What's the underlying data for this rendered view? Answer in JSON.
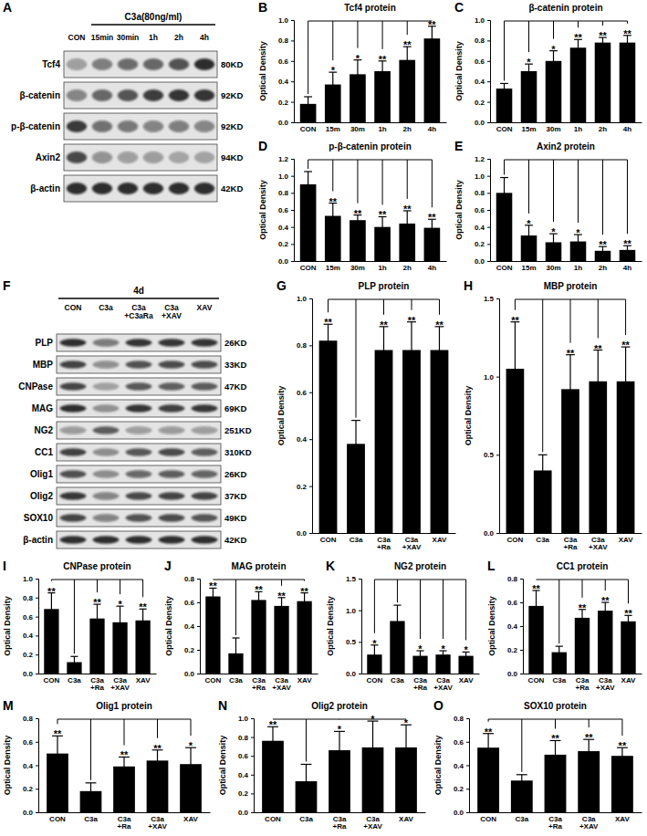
{
  "chart_data": [
    {
      "type": "bar",
      "panel_label": "B",
      "title": "Tcf4 protein",
      "y_label": "Optical Density",
      "color": "#000000",
      "categories": [
        "CON",
        "15m",
        "30m",
        "1h",
        "2h",
        "4h"
      ],
      "values": [
        0.18,
        0.37,
        0.47,
        0.5,
        0.61,
        0.82
      ],
      "errors": [
        0.07,
        0.12,
        0.14,
        0.1,
        0.13,
        0.12
      ],
      "significance": [
        null,
        "*",
        "*",
        "**",
        "**",
        "**"
      ],
      "ylim": [
        0,
        1.0
      ],
      "yticks": [
        {
          "value": 0,
          "label": "0.0"
        },
        0.2,
        0.4,
        0.6,
        0.8,
        {
          "value": 1,
          "label": "1.0"
        }
      ]
    },
    {
      "type": "bar",
      "panel_label": "C",
      "title": "β-catenin protein",
      "y_label": "Optical Density",
      "color": "#000000",
      "categories": [
        "CON",
        "15m",
        "30m",
        "1h",
        "2h",
        "4h"
      ],
      "values": [
        0.33,
        0.5,
        0.6,
        0.73,
        0.78,
        0.78
      ],
      "errors": [
        0.05,
        0.07,
        0.1,
        0.08,
        0.05,
        0.07
      ],
      "significance": [
        null,
        "*",
        "*",
        "**",
        "**",
        "**"
      ],
      "ylim": [
        0,
        1.0
      ],
      "yticks": [
        {
          "value": 0,
          "label": "0.0"
        },
        0.2,
        0.4,
        0.6,
        0.8,
        {
          "value": 1,
          "label": "1.0"
        }
      ]
    },
    {
      "type": "bar",
      "panel_label": "D",
      "title": "p-β-catenin protein",
      "y_label": "Optical Density",
      "color": "#000000",
      "categories": [
        "CON",
        "15m",
        "30m",
        "1h",
        "2h",
        "4h"
      ],
      "values": [
        0.9,
        0.53,
        0.48,
        0.4,
        0.44,
        0.39
      ],
      "errors": [
        0.15,
        0.15,
        0.06,
        0.12,
        0.15,
        0.1
      ],
      "significance": [
        null,
        "**",
        "**",
        "**",
        "**",
        "**"
      ],
      "ylim": [
        0,
        1.2
      ],
      "yticks": [
        {
          "value": 0,
          "label": "0.0"
        },
        0.2,
        0.4,
        0.6,
        0.8,
        {
          "value": 1,
          "label": "1.0"
        },
        1.2
      ]
    },
    {
      "type": "bar",
      "panel_label": "E",
      "title": "Axin2 protein",
      "y_label": "Optical Density",
      "color": "#000000",
      "categories": [
        "CON",
        "15m",
        "30m",
        "1h",
        "2h",
        "4h"
      ],
      "values": [
        0.8,
        0.3,
        0.22,
        0.23,
        0.12,
        0.13
      ],
      "errors": [
        0.18,
        0.12,
        0.1,
        0.08,
        0.05,
        0.05
      ],
      "significance": [
        null,
        "*",
        "*",
        "*",
        "**",
        "**"
      ],
      "ylim": [
        0,
        1.2
      ],
      "yticks": [
        {
          "value": 0,
          "label": "0.0"
        },
        0.2,
        0.4,
        0.6,
        0.8,
        {
          "value": 1,
          "label": "1.0"
        },
        1.2
      ]
    },
    {
      "type": "bar",
      "panel_label": "G",
      "title": "PLP protein",
      "y_label": "Optical Density",
      "color": "#000000",
      "categories": [
        "CON",
        "C3a",
        "C3a +Ra",
        "C3a +XAV",
        "XAV"
      ],
      "values": [
        0.82,
        0.38,
        0.78,
        0.78,
        0.78
      ],
      "errors": [
        0.07,
        0.1,
        0.1,
        0.12,
        0.1
      ],
      "significance": [
        "**",
        null,
        "**",
        "**",
        "**"
      ],
      "ylim": [
        0,
        1.0
      ],
      "yticks": [
        {
          "value": 0,
          "label": "0.0"
        },
        0.2,
        0.4,
        0.6,
        0.8,
        {
          "value": 1,
          "label": "1.0"
        }
      ]
    },
    {
      "type": "bar",
      "panel_label": "H",
      "title": "MBP protein",
      "y_label": "Optical Density",
      "color": "#000000",
      "categories": [
        "CON",
        "C3a",
        "C3a +Ra",
        "C3a +XAV",
        "XAV"
      ],
      "values": [
        1.05,
        0.4,
        0.92,
        0.97,
        0.97
      ],
      "errors": [
        0.3,
        0.1,
        0.22,
        0.2,
        0.22
      ],
      "significance": [
        "**",
        null,
        "**",
        "**",
        "**"
      ],
      "ylim": [
        0,
        1.5
      ],
      "yticks": [
        {
          "value": 0,
          "label": "0.0"
        },
        0.5,
        {
          "value": 1,
          "label": "1.0"
        },
        1.5
      ]
    },
    {
      "type": "bar",
      "panel_label": "I",
      "title": "CNPase protein",
      "y_label": "Optical Density",
      "color": "#000000",
      "categories": [
        "CON",
        "C3a",
        "C3a +Ra",
        "C3a +XAV",
        "XAV"
      ],
      "values": [
        0.68,
        0.12,
        0.58,
        0.54,
        0.56
      ],
      "errors": [
        0.17,
        0.06,
        0.15,
        0.17,
        0.12
      ],
      "significance": [
        "**",
        null,
        "**",
        "*",
        "**"
      ],
      "ylim": [
        0,
        1.0
      ],
      "yticks": [
        {
          "value": 0,
          "label": "0.0"
        },
        0.2,
        0.4,
        0.6,
        0.8,
        {
          "value": 1,
          "label": "1.0"
        }
      ]
    },
    {
      "type": "bar",
      "panel_label": "J",
      "title": "MAG protein",
      "y_label": "Optical Density",
      "color": "#000000",
      "categories": [
        "CON",
        "C3a",
        "C3a +Ra",
        "C3a +XAV",
        "XAV"
      ],
      "values": [
        0.65,
        0.17,
        0.62,
        0.57,
        0.61
      ],
      "errors": [
        0.07,
        0.13,
        0.07,
        0.07,
        0.07
      ],
      "significance": [
        "**",
        null,
        "**",
        "**",
        "**"
      ],
      "ylim": [
        0,
        0.8
      ],
      "yticks": [
        {
          "value": 0,
          "label": "0.0"
        },
        0.2,
        0.4,
        0.6,
        0.8
      ]
    },
    {
      "type": "bar",
      "panel_label": "K",
      "title": "NG2 protein",
      "y_label": "Optical Density",
      "color": "#000000",
      "categories": [
        "CON",
        "C3a",
        "C3a +Ra",
        "C3a +XAV",
        "XAV"
      ],
      "values": [
        0.3,
        0.83,
        0.28,
        0.3,
        0.28
      ],
      "errors": [
        0.15,
        0.25,
        0.08,
        0.06,
        0.06
      ],
      "significance": [
        "*",
        null,
        "*",
        "*",
        "*"
      ],
      "ylim": [
        0,
        1.5
      ],
      "yticks": [
        {
          "value": 0,
          "label": "0.0"
        },
        0.5,
        {
          "value": 1,
          "label": "1.0"
        },
        1.5
      ]
    },
    {
      "type": "bar",
      "panel_label": "L",
      "title": "CC1 protein",
      "y_label": "Optical Density",
      "color": "#000000",
      "categories": [
        "CON",
        "C3a",
        "C3a +Ra",
        "C3a +XAV",
        "XAV"
      ],
      "values": [
        0.57,
        0.18,
        0.47,
        0.53,
        0.44
      ],
      "errors": [
        0.13,
        0.05,
        0.07,
        0.07,
        0.05
      ],
      "significance": [
        "**",
        null,
        "**",
        "**",
        "**"
      ],
      "ylim": [
        0,
        0.8
      ],
      "yticks": [
        {
          "value": 0,
          "label": "0.0"
        },
        0.2,
        0.4,
        0.6,
        0.8
      ]
    },
    {
      "type": "bar",
      "panel_label": "M",
      "title": "Olig1 protein",
      "y_label": "Optical Density",
      "color": "#000000",
      "categories": [
        "CON",
        "C3a",
        "C3a +Ra",
        "C3a +XAV",
        "XAV"
      ],
      "values": [
        0.5,
        0.18,
        0.39,
        0.44,
        0.41
      ],
      "errors": [
        0.15,
        0.07,
        0.08,
        0.09,
        0.14
      ],
      "significance": [
        "**",
        null,
        "**",
        "**",
        "*"
      ],
      "ylim": [
        0,
        0.8
      ],
      "yticks": [
        {
          "value": 0,
          "label": "0.0"
        },
        0.2,
        0.4,
        0.6,
        0.8
      ]
    },
    {
      "type": "bar",
      "panel_label": "N",
      "title": "Olig2 protein",
      "y_label": "Optical Density",
      "color": "#000000",
      "categories": [
        "CON",
        "C3a",
        "C3a +Ra",
        "C3a +XAV",
        "XAV"
      ],
      "values": [
        0.76,
        0.33,
        0.66,
        0.69,
        0.69
      ],
      "errors": [
        0.15,
        0.18,
        0.2,
        0.28,
        0.24
      ],
      "significance": [
        "**",
        null,
        "*",
        "*",
        "*"
      ],
      "ylim": [
        0,
        1.0
      ],
      "yticks": [
        {
          "value": 0,
          "label": "0.0"
        },
        0.2,
        0.4,
        0.6,
        0.8,
        {
          "value": 1,
          "label": "1.0"
        }
      ]
    },
    {
      "type": "bar",
      "panel_label": "O",
      "title": "SOX10 protein",
      "y_label": "Optical Density",
      "color": "#000000",
      "categories": [
        "CON",
        "C3a",
        "C3a +Ra",
        "C3a +XAV",
        "XAV"
      ],
      "values": [
        0.55,
        0.27,
        0.49,
        0.52,
        0.48
      ],
      "errors": [
        0.12,
        0.05,
        0.12,
        0.1,
        0.07
      ],
      "significance": [
        "**",
        null,
        "**",
        "**",
        "**"
      ],
      "ylim": [
        0,
        0.8
      ],
      "yticks": [
        {
          "value": 0,
          "label": "0.0"
        },
        0.2,
        0.4,
        0.6,
        0.8
      ]
    }
  ],
  "blots": [
    {
      "panel_label": "A",
      "header": "C3a(80ng/ml)",
      "lanes": [
        "CON",
        "15min",
        "30min",
        "1h",
        "2h",
        "4h"
      ],
      "rows": [
        {
          "name": "Tcf4",
          "size": "80KD"
        },
        {
          "name": "β-catenin",
          "size": "92KD"
        },
        {
          "name": "p-β-catenin",
          "size": "92KD"
        },
        {
          "name": "Axin2",
          "size": "94KD"
        },
        {
          "name": "β-actin",
          "size": "42KD"
        }
      ]
    },
    {
      "panel_label": "F",
      "header": "4d",
      "lanes": [
        "CON",
        "C3a",
        "C3a +C3aRa",
        "C3a +XAV",
        "XAV"
      ],
      "rows": [
        {
          "name": "PLP",
          "size": "26KD"
        },
        {
          "name": "MBP",
          "size": "33KD"
        },
        {
          "name": "CNPase",
          "size": "47KD"
        },
        {
          "name": "MAG",
          "size": "69KD"
        },
        {
          "name": "NG2",
          "size": "251KD"
        },
        {
          "name": "CC1",
          "size": "310KD"
        },
        {
          "name": "Olig1",
          "size": "26KD"
        },
        {
          "name": "Olig2",
          "size": "37KD"
        },
        {
          "name": "SOX10",
          "size": "49KD"
        },
        {
          "name": "β-actin",
          "size": "42KD"
        }
      ]
    }
  ]
}
